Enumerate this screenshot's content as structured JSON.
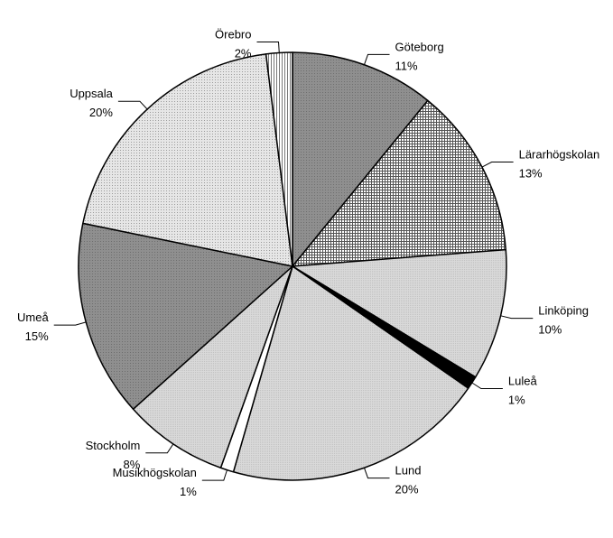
{
  "chart_data": {
    "type": "pie",
    "title": "",
    "slices": [
      {
        "label": "Göteborg",
        "pct_label": "11%",
        "value": 11,
        "pattern": "dark-gray"
      },
      {
        "label": "Lärarhögskolan",
        "pct_label": "13%",
        "value": 13,
        "pattern": "crosshatch"
      },
      {
        "label": "Linköping",
        "pct_label": "10%",
        "value": 10,
        "pattern": "light-gray"
      },
      {
        "label": "Luleå",
        "pct_label": "1%",
        "value": 1,
        "pattern": "black"
      },
      {
        "label": "Lund",
        "pct_label": "20%",
        "value": 20,
        "pattern": "light-gray"
      },
      {
        "label": "Musikhögskolan",
        "pct_label": "1%",
        "value": 1,
        "pattern": "white"
      },
      {
        "label": "Stockholm",
        "pct_label": "8%",
        "value": 8,
        "pattern": "light-gray"
      },
      {
        "label": "Umeå",
        "pct_label": "15%",
        "value": 15,
        "pattern": "dark-gray"
      },
      {
        "label": "Uppsala",
        "pct_label": "20%",
        "value": 20,
        "pattern": "dotted"
      },
      {
        "label": "Örebro",
        "pct_label": "2%",
        "value": 2,
        "pattern": "vertical-lines"
      }
    ],
    "start_angle": "12 o'clock",
    "direction": "clockwise",
    "legend": "none",
    "labels": "outside with leader lines"
  }
}
